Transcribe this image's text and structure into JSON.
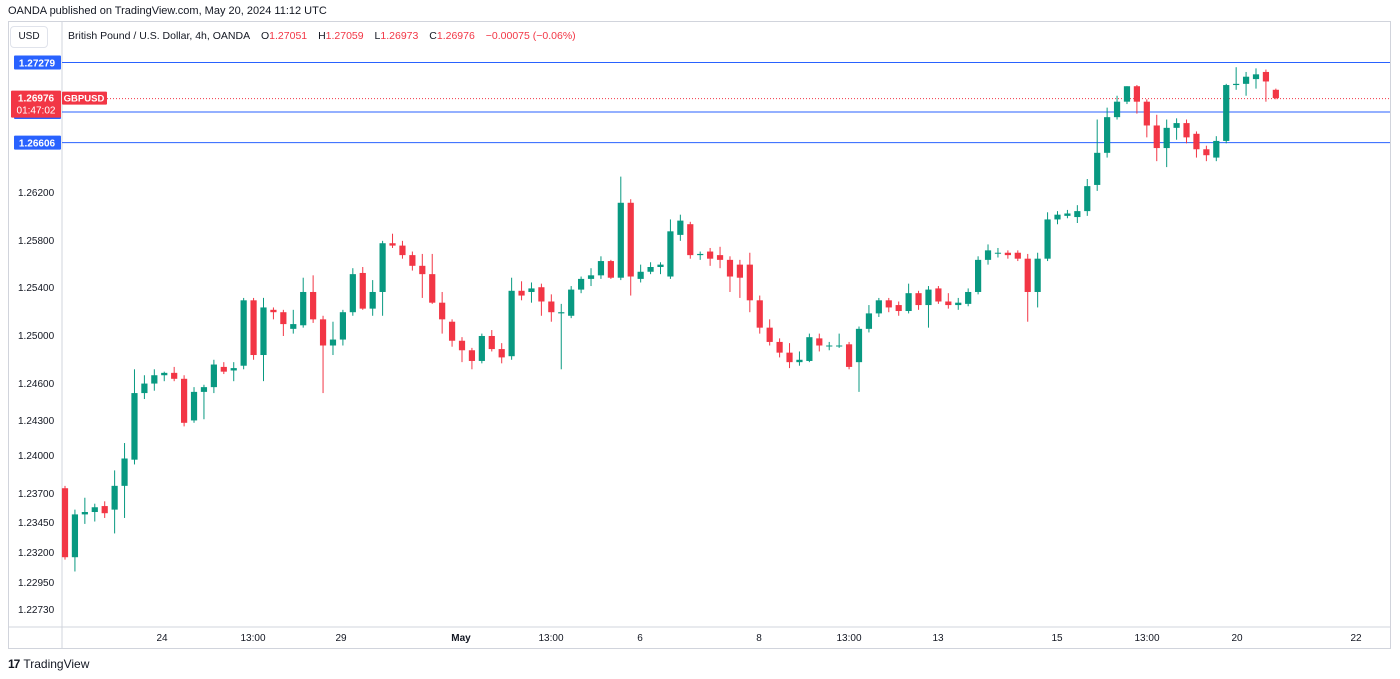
{
  "header": {
    "published": "OANDA published on TradingView.com, May 20, 2024 11:12 UTC",
    "currency": "USD",
    "symbol_desc": "British Pound / U.S. Dollar, 4h, OANDA",
    "ohlc": {
      "o_label": "O",
      "o": "1.27051",
      "h_label": "H",
      "h": "1.27059",
      "l_label": "L",
      "l": "1.26973",
      "c_label": "C",
      "c": "1.26976",
      "chg": "−0.00075 (−0.06%)"
    }
  },
  "footer": {
    "brand_logo": "17",
    "brand_name": "TradingView"
  },
  "chart_data": {
    "type": "candlestick",
    "symbol": "GBPUSD",
    "timeframe": "4h",
    "price_axis_ticks": [
      "1.22730",
      "1.22950",
      "1.23200",
      "1.23450",
      "1.23700",
      "1.24000",
      "1.24300",
      "1.24600",
      "1.25000",
      "1.25400",
      "1.25800",
      "1.26200"
    ],
    "time_axis_ticks": [
      "24",
      "13:00",
      "29",
      "May",
      "13:00",
      "6",
      "8",
      "13:00",
      "13",
      "15",
      "13:00",
      "20",
      "22"
    ],
    "ylim": [
      1.2255,
      1.2762
    ],
    "horizontal_levels": [
      {
        "price": 1.27279,
        "label": "1.27279",
        "color": "#2962ff"
      },
      {
        "price": 1.26863,
        "label": "1.26863",
        "color": "#2962ff"
      },
      {
        "price": 1.26606,
        "label": "1.26606",
        "color": "#2962ff"
      }
    ],
    "last_price": {
      "price": 1.26976,
      "label": "1.26976",
      "countdown": "01:47:02",
      "symbol_label": "GBPUSD",
      "color": "#f23645"
    },
    "colors": {
      "up": "#089981",
      "down": "#f23645",
      "grid": "#f0f3fa",
      "axis_text": "#131722",
      "level": "#2962ff"
    },
    "candles": [
      {
        "o": 1.237,
        "h": 1.2372,
        "l": 1.231,
        "c": 1.2312
      },
      {
        "o": 1.2312,
        "h": 1.2352,
        "l": 1.23,
        "c": 1.2348
      },
      {
        "o": 1.2348,
        "h": 1.2362,
        "l": 1.234,
        "c": 1.235
      },
      {
        "o": 1.235,
        "h": 1.2357,
        "l": 1.2342,
        "c": 1.2354
      },
      {
        "o": 1.2355,
        "h": 1.2359,
        "l": 1.2345,
        "c": 1.2349
      },
      {
        "o": 1.2352,
        "h": 1.2385,
        "l": 1.2332,
        "c": 1.2372
      },
      {
        "o": 1.2372,
        "h": 1.2408,
        "l": 1.2345,
        "c": 1.2395
      },
      {
        "o": 1.2394,
        "h": 1.247,
        "l": 1.239,
        "c": 1.245
      },
      {
        "o": 1.245,
        "h": 1.2465,
        "l": 1.2445,
        "c": 1.2458
      },
      {
        "o": 1.2458,
        "h": 1.247,
        "l": 1.2452,
        "c": 1.2465
      },
      {
        "o": 1.2465,
        "h": 1.2468,
        "l": 1.246,
        "c": 1.2467
      },
      {
        "o": 1.2467,
        "h": 1.2472,
        "l": 1.246,
        "c": 1.2462
      },
      {
        "o": 1.2462,
        "h": 1.2465,
        "l": 1.2422,
        "c": 1.2425
      },
      {
        "o": 1.2427,
        "h": 1.2455,
        "l": 1.2425,
        "c": 1.2451
      },
      {
        "o": 1.2451,
        "h": 1.2457,
        "l": 1.2428,
        "c": 1.2455
      },
      {
        "o": 1.2455,
        "h": 1.2478,
        "l": 1.245,
        "c": 1.2474
      },
      {
        "o": 1.2472,
        "h": 1.2476,
        "l": 1.2466,
        "c": 1.2468
      },
      {
        "o": 1.2469,
        "h": 1.2476,
        "l": 1.246,
        "c": 1.2471
      },
      {
        "o": 1.2473,
        "h": 1.253,
        "l": 1.247,
        "c": 1.2528
      },
      {
        "o": 1.2528,
        "h": 1.253,
        "l": 1.2478,
        "c": 1.2482
      },
      {
        "o": 1.2482,
        "h": 1.253,
        "l": 1.246,
        "c": 1.2522
      },
      {
        "o": 1.252,
        "h": 1.2522,
        "l": 1.2512,
        "c": 1.2518
      },
      {
        "o": 1.2518,
        "h": 1.252,
        "l": 1.2498,
        "c": 1.2508
      },
      {
        "o": 1.2504,
        "h": 1.252,
        "l": 1.25,
        "c": 1.2508
      },
      {
        "o": 1.2507,
        "h": 1.2547,
        "l": 1.2505,
        "c": 1.2535
      },
      {
        "o": 1.2535,
        "h": 1.2549,
        "l": 1.2509,
        "c": 1.2512
      },
      {
        "o": 1.2512,
        "h": 1.2515,
        "l": 1.245,
        "c": 1.249
      },
      {
        "o": 1.249,
        "h": 1.251,
        "l": 1.2482,
        "c": 1.2495
      },
      {
        "o": 1.2495,
        "h": 1.252,
        "l": 1.249,
        "c": 1.2518
      },
      {
        "o": 1.2518,
        "h": 1.2555,
        "l": 1.2515,
        "c": 1.255
      },
      {
        "o": 1.2551,
        "h": 1.2556,
        "l": 1.252,
        "c": 1.2521
      },
      {
        "o": 1.2521,
        "h": 1.2545,
        "l": 1.2515,
        "c": 1.2535
      },
      {
        "o": 1.2535,
        "h": 1.2578,
        "l": 1.2515,
        "c": 1.2576
      },
      {
        "o": 1.2576,
        "h": 1.2584,
        "l": 1.2572,
        "c": 1.2574
      },
      {
        "o": 1.2574,
        "h": 1.2578,
        "l": 1.2563,
        "c": 1.2566
      },
      {
        "o": 1.2566,
        "h": 1.2569,
        "l": 1.2553,
        "c": 1.2557
      },
      {
        "o": 1.2557,
        "h": 1.2567,
        "l": 1.253,
        "c": 1.255
      },
      {
        "o": 1.255,
        "h": 1.2567,
        "l": 1.2525,
        "c": 1.2526
      },
      {
        "o": 1.2526,
        "h": 1.2535,
        "l": 1.25,
        "c": 1.2512
      },
      {
        "o": 1.251,
        "h": 1.2512,
        "l": 1.2489,
        "c": 1.2494
      },
      {
        "o": 1.2494,
        "h": 1.2497,
        "l": 1.2476,
        "c": 1.2486
      },
      {
        "o": 1.2486,
        "h": 1.2488,
        "l": 1.247,
        "c": 1.2477
      },
      {
        "o": 1.2477,
        "h": 1.25,
        "l": 1.2475,
        "c": 1.2498
      },
      {
        "o": 1.2498,
        "h": 1.2503,
        "l": 1.2485,
        "c": 1.2487
      },
      {
        "o": 1.2487,
        "h": 1.2492,
        "l": 1.2475,
        "c": 1.248
      },
      {
        "o": 1.2481,
        "h": 1.2547,
        "l": 1.2478,
        "c": 1.2536
      },
      {
        "o": 1.2536,
        "h": 1.2544,
        "l": 1.2528,
        "c": 1.2532
      },
      {
        "o": 1.2535,
        "h": 1.2543,
        "l": 1.2526,
        "c": 1.2538
      },
      {
        "o": 1.2539,
        "h": 1.2542,
        "l": 1.2515,
        "c": 1.2527
      },
      {
        "o": 1.2527,
        "h": 1.2533,
        "l": 1.251,
        "c": 1.2518
      },
      {
        "o": 1.2517,
        "h": 1.2525,
        "l": 1.247,
        "c": 1.2518
      },
      {
        "o": 1.2515,
        "h": 1.254,
        "l": 1.2513,
        "c": 1.2537
      },
      {
        "o": 1.2537,
        "h": 1.2548,
        "l": 1.2534,
        "c": 1.2546
      },
      {
        "o": 1.2546,
        "h": 1.2555,
        "l": 1.254,
        "c": 1.2549
      },
      {
        "o": 1.2549,
        "h": 1.2565,
        "l": 1.2546,
        "c": 1.2561
      },
      {
        "o": 1.2561,
        "h": 1.2562,
        "l": 1.2546,
        "c": 1.2547
      },
      {
        "o": 1.2547,
        "h": 1.2632,
        "l": 1.2545,
        "c": 1.261
      },
      {
        "o": 1.261,
        "h": 1.2613,
        "l": 1.2532,
        "c": 1.2548
      },
      {
        "o": 1.2546,
        "h": 1.2558,
        "l": 1.2543,
        "c": 1.2552
      },
      {
        "o": 1.2552,
        "h": 1.256,
        "l": 1.255,
        "c": 1.2556
      },
      {
        "o": 1.2556,
        "h": 1.256,
        "l": 1.255,
        "c": 1.2558
      },
      {
        "o": 1.2548,
        "h": 1.2596,
        "l": 1.2546,
        "c": 1.2586
      },
      {
        "o": 1.2583,
        "h": 1.26,
        "l": 1.2578,
        "c": 1.2595
      },
      {
        "o": 1.2592,
        "h": 1.2594,
        "l": 1.2563,
        "c": 1.2566
      },
      {
        "o": 1.2566,
        "h": 1.2569,
        "l": 1.2562,
        "c": 1.2567
      },
      {
        "o": 1.2569,
        "h": 1.2572,
        "l": 1.2557,
        "c": 1.2563
      },
      {
        "o": 1.2566,
        "h": 1.2573,
        "l": 1.2555,
        "c": 1.2562
      },
      {
        "o": 1.2562,
        "h": 1.2565,
        "l": 1.2535,
        "c": 1.2548
      },
      {
        "o": 1.2558,
        "h": 1.2562,
        "l": 1.253,
        "c": 1.2547
      },
      {
        "o": 1.2558,
        "h": 1.2568,
        "l": 1.2518,
        "c": 1.2528
      },
      {
        "o": 1.2528,
        "h": 1.2532,
        "l": 1.25,
        "c": 1.2505
      },
      {
        "o": 1.2505,
        "h": 1.2512,
        "l": 1.249,
        "c": 1.2493
      },
      {
        "o": 1.2493,
        "h": 1.2496,
        "l": 1.248,
        "c": 1.2484
      },
      {
        "o": 1.2484,
        "h": 1.2492,
        "l": 1.2471,
        "c": 1.2476
      },
      {
        "o": 1.2476,
        "h": 1.2485,
        "l": 1.2473,
        "c": 1.2478
      },
      {
        "o": 1.2477,
        "h": 1.25,
        "l": 1.2476,
        "c": 1.2497
      },
      {
        "o": 1.2496,
        "h": 1.25,
        "l": 1.2485,
        "c": 1.249
      },
      {
        "o": 1.249,
        "h": 1.2493,
        "l": 1.2486,
        "c": 1.249
      },
      {
        "o": 1.249,
        "h": 1.25,
        "l": 1.2488,
        "c": 1.249
      },
      {
        "o": 1.2491,
        "h": 1.2493,
        "l": 1.247,
        "c": 1.2472
      },
      {
        "o": 1.2476,
        "h": 1.2506,
        "l": 1.2451,
        "c": 1.2504
      },
      {
        "o": 1.2504,
        "h": 1.2524,
        "l": 1.2501,
        "c": 1.2517
      },
      {
        "o": 1.2517,
        "h": 1.253,
        "l": 1.2514,
        "c": 1.2528
      },
      {
        "o": 1.2528,
        "h": 1.253,
        "l": 1.2518,
        "c": 1.2522
      },
      {
        "o": 1.2524,
        "h": 1.2527,
        "l": 1.2515,
        "c": 1.2519
      },
      {
        "o": 1.2519,
        "h": 1.2542,
        "l": 1.2517,
        "c": 1.2534
      },
      {
        "o": 1.2534,
        "h": 1.2536,
        "l": 1.252,
        "c": 1.2524
      },
      {
        "o": 1.2524,
        "h": 1.254,
        "l": 1.2505,
        "c": 1.2537
      },
      {
        "o": 1.2538,
        "h": 1.254,
        "l": 1.2525,
        "c": 1.2527
      },
      {
        "o": 1.2527,
        "h": 1.2534,
        "l": 1.2521,
        "c": 1.2524
      },
      {
        "o": 1.2524,
        "h": 1.253,
        "l": 1.252,
        "c": 1.2526
      },
      {
        "o": 1.2525,
        "h": 1.2538,
        "l": 1.2523,
        "c": 1.2535
      },
      {
        "o": 1.2535,
        "h": 1.2565,
        "l": 1.2533,
        "c": 1.2562
      },
      {
        "o": 1.2562,
        "h": 1.2575,
        "l": 1.2558,
        "c": 1.257
      },
      {
        "o": 1.2568,
        "h": 1.2572,
        "l": 1.2564,
        "c": 1.2568
      },
      {
        "o": 1.2568,
        "h": 1.257,
        "l": 1.2563,
        "c": 1.2566
      },
      {
        "o": 1.2568,
        "h": 1.257,
        "l": 1.2561,
        "c": 1.2563
      },
      {
        "o": 1.2563,
        "h": 1.2567,
        "l": 1.251,
        "c": 1.2535
      },
      {
        "o": 1.2535,
        "h": 1.2568,
        "l": 1.2522,
        "c": 1.2563
      },
      {
        "o": 1.2563,
        "h": 1.2602,
        "l": 1.2561,
        "c": 1.2596
      },
      {
        "o": 1.2596,
        "h": 1.2603,
        "l": 1.2592,
        "c": 1.26
      },
      {
        "o": 1.2599,
        "h": 1.2604,
        "l": 1.2597,
        "c": 1.2601
      },
      {
        "o": 1.2598,
        "h": 1.2608,
        "l": 1.2593,
        "c": 1.2603
      },
      {
        "o": 1.2603,
        "h": 1.263,
        "l": 1.2599,
        "c": 1.2624
      },
      {
        "o": 1.2625,
        "h": 1.268,
        "l": 1.262,
        "c": 1.2652
      },
      {
        "o": 1.2652,
        "h": 1.269,
        "l": 1.2648,
        "c": 1.2682
      },
      {
        "o": 1.2682,
        "h": 1.27,
        "l": 1.268,
        "c": 1.2695
      },
      {
        "o": 1.2695,
        "h": 1.2708,
        "l": 1.2693,
        "c": 1.2708
      },
      {
        "o": 1.2708,
        "h": 1.2709,
        "l": 1.2685,
        "c": 1.2695
      },
      {
        "o": 1.2695,
        "h": 1.2697,
        "l": 1.2665,
        "c": 1.2675
      },
      {
        "o": 1.2675,
        "h": 1.2684,
        "l": 1.2645,
        "c": 1.2656
      },
      {
        "o": 1.2656,
        "h": 1.268,
        "l": 1.264,
        "c": 1.2673
      },
      {
        "o": 1.2673,
        "h": 1.2681,
        "l": 1.2663,
        "c": 1.2677
      },
      {
        "o": 1.2677,
        "h": 1.268,
        "l": 1.266,
        "c": 1.2665
      },
      {
        "o": 1.2668,
        "h": 1.267,
        "l": 1.2648,
        "c": 1.2655
      },
      {
        "o": 1.2655,
        "h": 1.2658,
        "l": 1.2645,
        "c": 1.265
      },
      {
        "o": 1.2648,
        "h": 1.2666,
        "l": 1.2645,
        "c": 1.2662
      },
      {
        "o": 1.2662,
        "h": 1.271,
        "l": 1.266,
        "c": 1.2709
      },
      {
        "o": 1.2709,
        "h": 1.2724,
        "l": 1.2705,
        "c": 1.271
      },
      {
        "o": 1.271,
        "h": 1.272,
        "l": 1.27,
        "c": 1.2716
      },
      {
        "o": 1.2714,
        "h": 1.2723,
        "l": 1.2706,
        "c": 1.2718
      },
      {
        "o": 1.272,
        "h": 1.2722,
        "l": 1.2695,
        "c": 1.2712
      },
      {
        "o": 1.2705,
        "h": 1.2706,
        "l": 1.2697,
        "c": 1.2698
      }
    ]
  }
}
